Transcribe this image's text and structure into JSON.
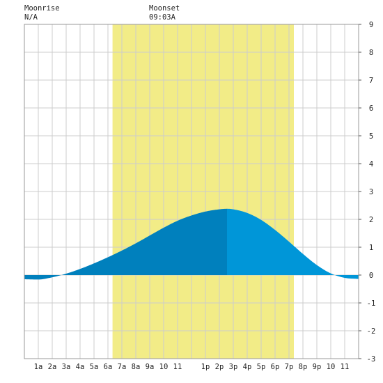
{
  "header": {
    "moonrise_label": "Moonrise",
    "moonrise_time": "N/A",
    "moonset_label": "Moonset",
    "moonset_time": "09:03A"
  },
  "colors": {
    "background": "#ffffff",
    "plot_background": "#ffffff",
    "grid": "#cccccc",
    "daylight": "#f2ec87",
    "tide_fill_dark": "#0080bd",
    "tide_fill_light": "#0096d8",
    "text": "#222222"
  },
  "chart_data": {
    "type": "area",
    "title": "",
    "xlabel": "",
    "ylabel": "",
    "x_unit": "hour of day",
    "xlim": [
      0,
      24
    ],
    "ylim": [
      -3,
      9
    ],
    "y_ticks": [
      "-3",
      "-2",
      "-1",
      "0",
      "1",
      "2",
      "3",
      "4",
      "5",
      "6",
      "7",
      "8",
      "9"
    ],
    "y_tick_values": [
      -3,
      -2,
      -1,
      0,
      1,
      2,
      3,
      4,
      5,
      6,
      7,
      8,
      9
    ],
    "x_ticks": [
      "1a",
      "2a",
      "3a",
      "4a",
      "5a",
      "6a",
      "7a",
      "8a",
      "9a",
      "10",
      "11",
      "1p",
      "2p",
      "3p",
      "4p",
      "5p",
      "6p",
      "7p",
      "8p",
      "9p",
      "10",
      "11"
    ],
    "x_tick_values": [
      1,
      2,
      3,
      4,
      5,
      6,
      7,
      8,
      9,
      10,
      11,
      13,
      14,
      15,
      16,
      17,
      18,
      19,
      20,
      21,
      22,
      23
    ],
    "y_axis_side": "right",
    "grid": true,
    "daylight_band": [
      6.33,
      19.35
    ],
    "high_tide_time": 14.55,
    "series": [
      {
        "x": [
          0,
          1,
          2,
          3,
          4,
          5,
          6,
          7,
          8,
          9,
          10,
          11,
          12,
          13,
          14,
          14.55,
          15,
          16,
          17,
          18,
          19,
          20,
          21,
          22,
          23,
          24
        ],
        "values": [
          -0.15,
          -0.16,
          -0.08,
          0.05,
          0.22,
          0.42,
          0.64,
          0.88,
          1.14,
          1.42,
          1.7,
          1.95,
          2.14,
          2.28,
          2.36,
          2.38,
          2.36,
          2.23,
          1.98,
          1.62,
          1.2,
          0.76,
          0.36,
          0.06,
          -0.1,
          -0.14
        ]
      }
    ]
  }
}
